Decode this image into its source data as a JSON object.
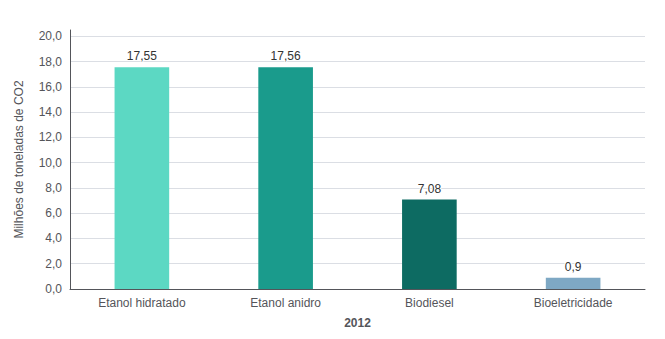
{
  "chart_data": {
    "type": "bar",
    "categories": [
      "Etanol hidratado",
      "Etanol anidro",
      "Biodiesel",
      "Bioeletricidade"
    ],
    "values": [
      17.55,
      17.56,
      7.08,
      0.9
    ],
    "value_labels": [
      "17,55",
      "17,56",
      "7,08",
      "0,9"
    ],
    "data_labels": true,
    "colors": [
      "#5CD8C3",
      "#1A9B8C",
      "#0D6B62",
      "#7EA8C4"
    ],
    "xlabel": "2012",
    "ylabel": "Milhões de toneladas de CO2",
    "ylim": [
      0,
      20.5
    ],
    "yticks": [
      {
        "value": 0.0,
        "label": "0,0"
      },
      {
        "value": 2.0,
        "label": "2,0"
      },
      {
        "value": 4.0,
        "label": "4,0"
      },
      {
        "value": 6.0,
        "label": "6,0"
      },
      {
        "value": 8.0,
        "label": "8,0"
      },
      {
        "value": 10.0,
        "label": "10,0"
      },
      {
        "value": 12.0,
        "label": "12,0"
      },
      {
        "value": 14.0,
        "label": "14,0"
      },
      {
        "value": 16.0,
        "label": "16,0"
      },
      {
        "value": 18.0,
        "label": "18,0"
      },
      {
        "value": 20.0,
        "label": "20,0"
      }
    ],
    "grid": true
  }
}
